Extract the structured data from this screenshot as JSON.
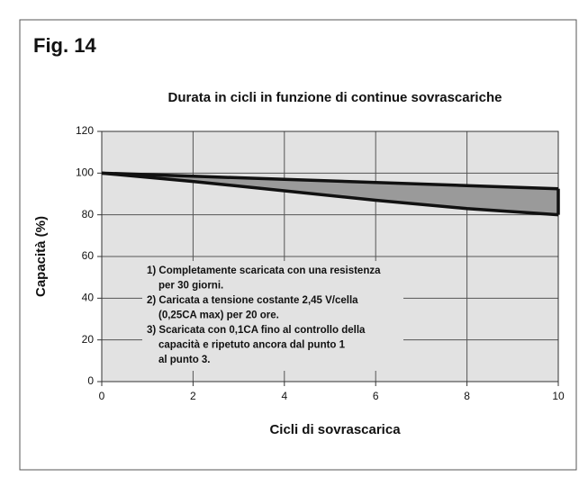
{
  "chart_data": {
    "type": "area_band",
    "figure_label": "Fig. 14",
    "title": "Durata in cicli in funzione di continue sovrascariche",
    "xlabel": "Cicli di sovrascarica",
    "ylabel": "Capacità (%)",
    "x": [
      0,
      2,
      4,
      6,
      8,
      10
    ],
    "series": [
      {
        "color": "#111111",
        "values": [
          100,
          98.5,
          97,
          95.5,
          94,
          92.5
        ]
      },
      {
        "color": "#111111",
        "values": [
          100,
          96,
          91.5,
          87,
          83,
          80
        ]
      }
    ],
    "fill_color": "#9a9a9a",
    "xlim": [
      0,
      10
    ],
    "ylim": [
      0,
      120
    ],
    "xticks": [
      0,
      2,
      4,
      6,
      8,
      10
    ],
    "yticks": [
      0,
      20,
      40,
      60,
      80,
      100,
      120
    ],
    "grid": true,
    "annotations": [
      "1) Completamente scaricata con una resistenza",
      "per 30 giorni.",
      "2) Caricata a tensione costante 2,45 V/cella",
      "(0,25CA max) per 20 ore.",
      "3) Scaricata con 0,1CA fino al controllo della",
      "capacità e ripetuto ancora dal punto 1",
      "al punto 3."
    ]
  }
}
